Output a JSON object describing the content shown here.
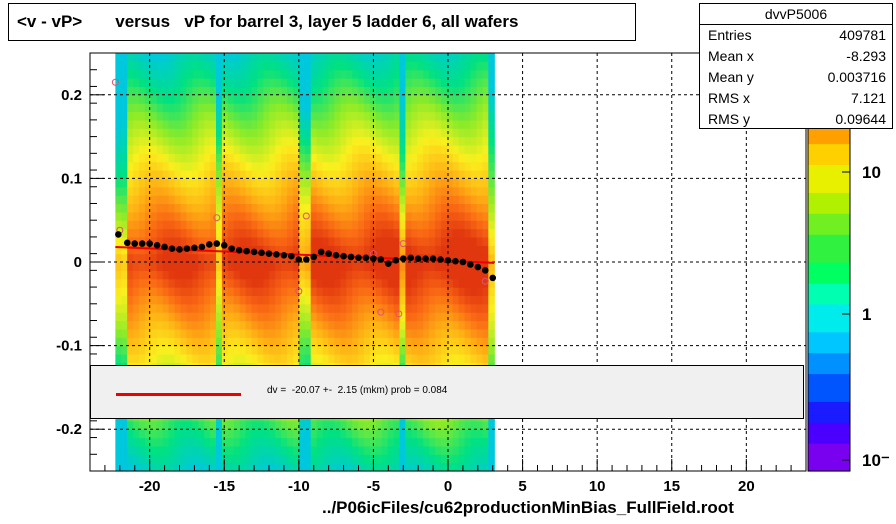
{
  "title": "<v - vP>       versus   vP for barrel 3, layer 5 ladder 6, all wafers",
  "stats": {
    "name": "dvvP5006",
    "rows": [
      {
        "label": "Entries",
        "value": "409781"
      },
      {
        "label": "Mean x",
        "value": "-8.293"
      },
      {
        "label": "Mean y",
        "value": "0.003716"
      },
      {
        "label": "RMS x",
        "value": "7.121"
      },
      {
        "label": "RMS y",
        "value": "0.09644"
      }
    ]
  },
  "fit_label": "dv =  -20.07 +-  2.15 (mkm) prob = 0.084",
  "footer": "../P06icFiles/cu62productionMinBias_FullField.root",
  "chart_data": {
    "type": "heatmap",
    "xlim": [
      -24,
      24
    ],
    "ylim": [
      -0.25,
      0.25
    ],
    "x_ticks": [
      -20,
      -15,
      -10,
      -5,
      0,
      5,
      10,
      15,
      20
    ],
    "x_tick_labels": [
      "-20",
      "-15",
      "-10",
      "-5",
      "0",
      "5",
      "10",
      "15",
      "20"
    ],
    "y_ticks": [
      -0.2,
      -0.1,
      0,
      0.1,
      0.2
    ],
    "y_tick_labels": [
      "-0.2",
      "-0.1",
      "0",
      "0.1",
      "0.2"
    ],
    "colorbar_labels": [
      "10",
      "1",
      "10⁻"
    ],
    "grid": true,
    "data_x_range": [
      -22.3,
      3.1
    ],
    "profile_points": {
      "x": [
        -22.1,
        -21.5,
        -21.0,
        -20.5,
        -20.0,
        -19.5,
        -19.0,
        -18.5,
        -18.0,
        -17.5,
        -17.0,
        -16.5,
        -16.0,
        -15.5,
        -15.0,
        -14.5,
        -14.0,
        -13.5,
        -13.0,
        -12.5,
        -12.0,
        -11.5,
        -11.0,
        -10.5,
        -10.0,
        -9.5,
        -9.0,
        -8.5,
        -8.0,
        -7.5,
        -7.0,
        -6.5,
        -6.0,
        -5.5,
        -5.0,
        -4.5,
        -4.0,
        -3.5,
        -3.0,
        -2.5,
        -2.0,
        -1.5,
        -1.0,
        -0.5,
        0.0,
        0.5,
        1.0,
        1.5,
        2.0,
        2.5,
        3.0
      ],
      "y": [
        0.033,
        0.023,
        0.022,
        0.022,
        0.022,
        0.02,
        0.018,
        0.016,
        0.015,
        0.016,
        0.017,
        0.018,
        0.021,
        0.022,
        0.02,
        0.016,
        0.014,
        0.013,
        0.012,
        0.011,
        0.01,
        0.009,
        0.008,
        0.007,
        0.003,
        0.003,
        0.006,
        0.012,
        0.01,
        0.008,
        0.007,
        0.006,
        0.005,
        0.005,
        0.004,
        0.003,
        -0.002,
        0.002,
        0.004,
        0.005,
        0.004,
        0.004,
        0.004,
        0.003,
        0.002,
        0.001,
        0.0,
        -0.003,
        -0.006,
        -0.01,
        -0.019
      ]
    },
    "outlier_points": {
      "x": [
        -22.3,
        -22.0,
        -15.5,
        -10.0,
        -9.5,
        -5.0,
        -4.5,
        -3.3,
        -3.0,
        2.5
      ],
      "y": [
        0.215,
        0.038,
        0.053,
        -0.035,
        0.055,
        0.01,
        -0.06,
        -0.062,
        0.022,
        -0.023
      ]
    },
    "fit_line": {
      "x": [
        -22.3,
        3.1
      ],
      "y": [
        0.018,
        -0.001
      ]
    }
  }
}
